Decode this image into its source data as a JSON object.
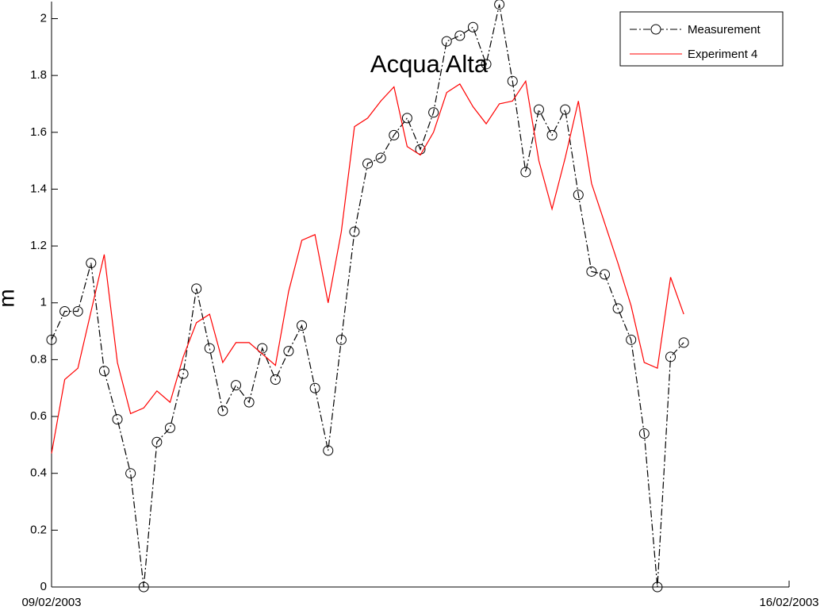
{
  "chart_data": {
    "type": "line",
    "annotation": "Acqua Alta",
    "y_label": "m",
    "x": [
      0,
      3,
      6,
      9,
      12,
      15,
      18,
      21,
      24,
      27,
      30,
      33,
      36,
      39,
      42,
      45,
      48,
      51,
      54,
      57,
      60,
      63,
      66,
      69,
      72,
      75,
      78,
      81,
      84,
      87,
      90,
      93,
      96,
      99,
      102,
      105,
      108,
      111,
      114,
      117,
      120,
      123,
      126,
      129,
      132,
      135,
      138,
      141,
      144
    ],
    "xlim": [
      0,
      168
    ],
    "xticks": [
      {
        "value": 0,
        "label": "09/02/2003"
      },
      {
        "value": 168,
        "label": "16/02/2003"
      }
    ],
    "ylim": [
      0,
      2.06
    ],
    "yticks": [
      0,
      0.2,
      0.4,
      0.6,
      0.8,
      1,
      1.2,
      1.4,
      1.6,
      1.8,
      2
    ],
    "grid": false,
    "legend": "upper right",
    "series": [
      {
        "name": "Measurement",
        "color": "#000000",
        "style": "dashdot",
        "marker": "circle",
        "values": [
          0.87,
          0.97,
          0.97,
          1.14,
          0.76,
          0.59,
          0.4,
          0.0,
          0.51,
          0.56,
          0.75,
          1.05,
          0.84,
          0.62,
          0.71,
          0.65,
          0.84,
          0.73,
          0.83,
          0.92,
          0.7,
          0.48,
          0.87,
          1.25,
          1.49,
          1.51,
          1.59,
          1.65,
          1.54,
          1.67,
          1.92,
          1.94,
          1.97,
          1.84,
          2.05,
          1.78,
          1.46,
          1.68,
          1.59,
          1.68,
          1.38,
          1.11,
          1.1,
          0.98,
          0.87,
          0.54,
          0.0,
          0.81,
          0.86
        ]
      },
      {
        "name": "Experiment 4",
        "color": "#ff0000",
        "style": "solid",
        "marker": "none",
        "values": [
          0.47,
          0.73,
          0.77,
          0.97,
          1.17,
          0.79,
          0.61,
          0.63,
          0.69,
          0.65,
          0.81,
          0.93,
          0.96,
          0.79,
          0.86,
          0.86,
          0.82,
          0.78,
          1.04,
          1.22,
          1.24,
          1.0,
          1.25,
          1.62,
          1.65,
          1.71,
          1.76,
          1.55,
          1.52,
          1.6,
          1.74,
          1.77,
          1.69,
          1.63,
          1.7,
          1.71,
          1.78,
          1.5,
          1.33,
          1.51,
          1.71,
          1.42,
          1.28,
          1.14,
          0.99,
          0.79,
          0.77,
          1.09,
          0.96
        ]
      }
    ]
  }
}
